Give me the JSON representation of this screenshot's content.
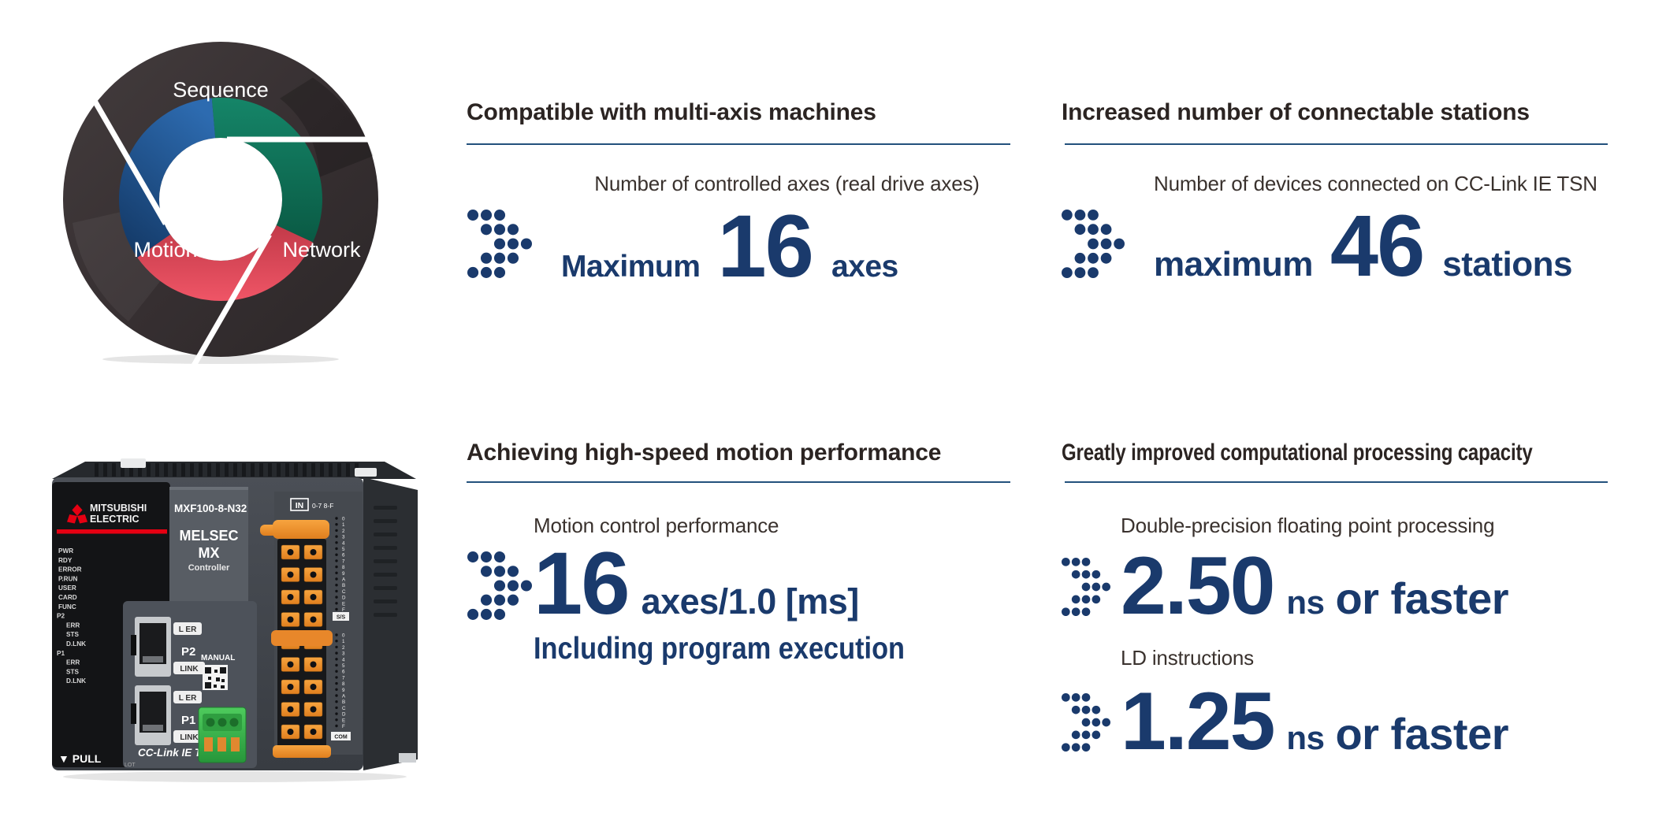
{
  "colors": {
    "navy": "#1a3a6c",
    "rule": "#23517c",
    "heading": "#2b2422",
    "sublabel": "#3a322e",
    "diagram_blue": "#1d4f8e",
    "diagram_green": "#0d6b54",
    "diagram_red": "#e0475a",
    "diagram_dark": "#373132",
    "brand_red": "#e60012"
  },
  "diagram": {
    "label_top": "Sequence",
    "label_left": "Motion",
    "label_right": "Network"
  },
  "features": [
    {
      "title": "Compatible with multi-axis machines",
      "sublabel": "Number of controlled axes (real drive axes)",
      "value_prefix": "Maximum",
      "value_number": "16",
      "value_suffix": "axes"
    },
    {
      "title": "Increased number of connectable stations",
      "sublabel": "Number of devices connected on CC-Link IE TSN",
      "value_prefix": "maximum",
      "value_number": "46",
      "value_suffix": "stations"
    },
    {
      "title": "Achieving high-speed motion performance",
      "sublabel": "Motion control performance",
      "value_number": "16",
      "value_suffix": "axes/1.0 [ms]",
      "note": "Including program execution"
    },
    {
      "title": "Greatly improved computational processing capacity",
      "rows": [
        {
          "sublabel": "Double-precision floating point processing",
          "value_number": "2.50",
          "value_unit": "ns",
          "value_suffix": "or faster"
        },
        {
          "sublabel": "LD instructions",
          "value_number": "1.25",
          "value_unit": "ns",
          "value_suffix": "or faster"
        }
      ]
    }
  ],
  "dots_icon": {
    "pattern": [
      [
        0,
        1,
        2
      ],
      [
        1,
        2,
        3
      ],
      [
        2,
        3,
        4
      ],
      [
        1,
        2,
        3
      ],
      [
        0,
        1,
        2
      ]
    ]
  },
  "plc": {
    "brand_line1": "MITSUBISHI",
    "brand_line2": "ELECTRIC",
    "led_labels": [
      "PWR",
      "RDY",
      "ERROR",
      "P.RUN",
      "USER",
      "CARD",
      "FUNC",
      "P2",
      "ERR",
      "STS",
      "D.LNK",
      "P1",
      "ERR",
      "STS",
      "D.LNK"
    ],
    "pull_label": "▼ PULL",
    "model": "MXF100-8-N32",
    "series_line1": "MELSEC",
    "series_line2": "MX",
    "series_line3": "Controller",
    "port_led_label": "L ER",
    "port2_label": "P2",
    "port1_label": "P1",
    "link_label": "LINK",
    "manual_label": "MANUAL",
    "network_logo": "CC-Link IE TSN",
    "lot_label": "LOT",
    "in_label": "IN",
    "in_range": "0-7  8-F",
    "hex_scale": "0123456789ABCDEF",
    "ss_label": "S/S",
    "com_label": "COM"
  }
}
